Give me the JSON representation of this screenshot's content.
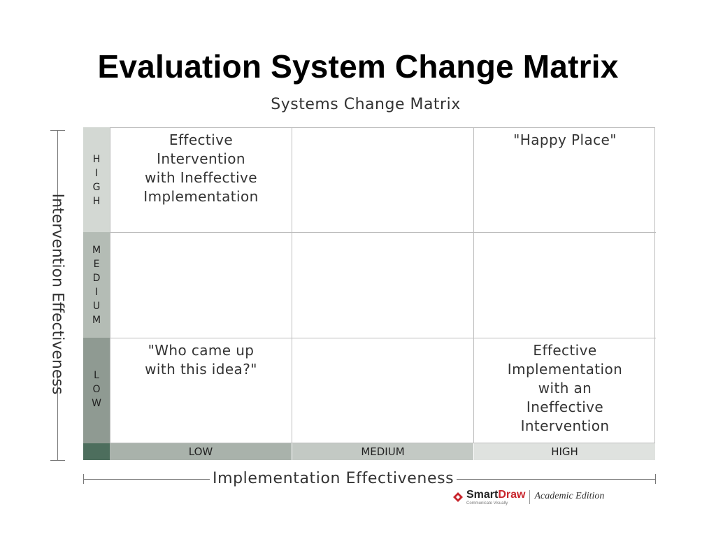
{
  "slide": {
    "title": "Evaluation System Change Matrix"
  },
  "matrix": {
    "title": "Systems Change Matrix",
    "y_axis_label": "Intervention Effectiveness",
    "x_axis_label": "Implementation Effectiveness",
    "rows": [
      {
        "label": "HIGH",
        "cells": [
          "Effective\nIntervention\nwith Ineffective\nImplementation",
          "",
          "\"Happy Place\""
        ]
      },
      {
        "label": "MEDIUM",
        "cells": [
          "",
          "",
          ""
        ]
      },
      {
        "label": "LOW",
        "cells": [
          "\"Who came up\nwith this idea?\"",
          "",
          "Effective\nImplementation\nwith an\nIneffective\nIntervention"
        ]
      }
    ],
    "columns": [
      "LOW",
      "MEDIUM",
      "HIGH"
    ]
  },
  "branding": {
    "name_part1": "Smart",
    "name_part2": "Draw",
    "tagline": "Communicate Visually",
    "edition": "Academic Edition",
    "icon": "smartdraw-logo-icon",
    "accent_color": "#c8252c"
  }
}
